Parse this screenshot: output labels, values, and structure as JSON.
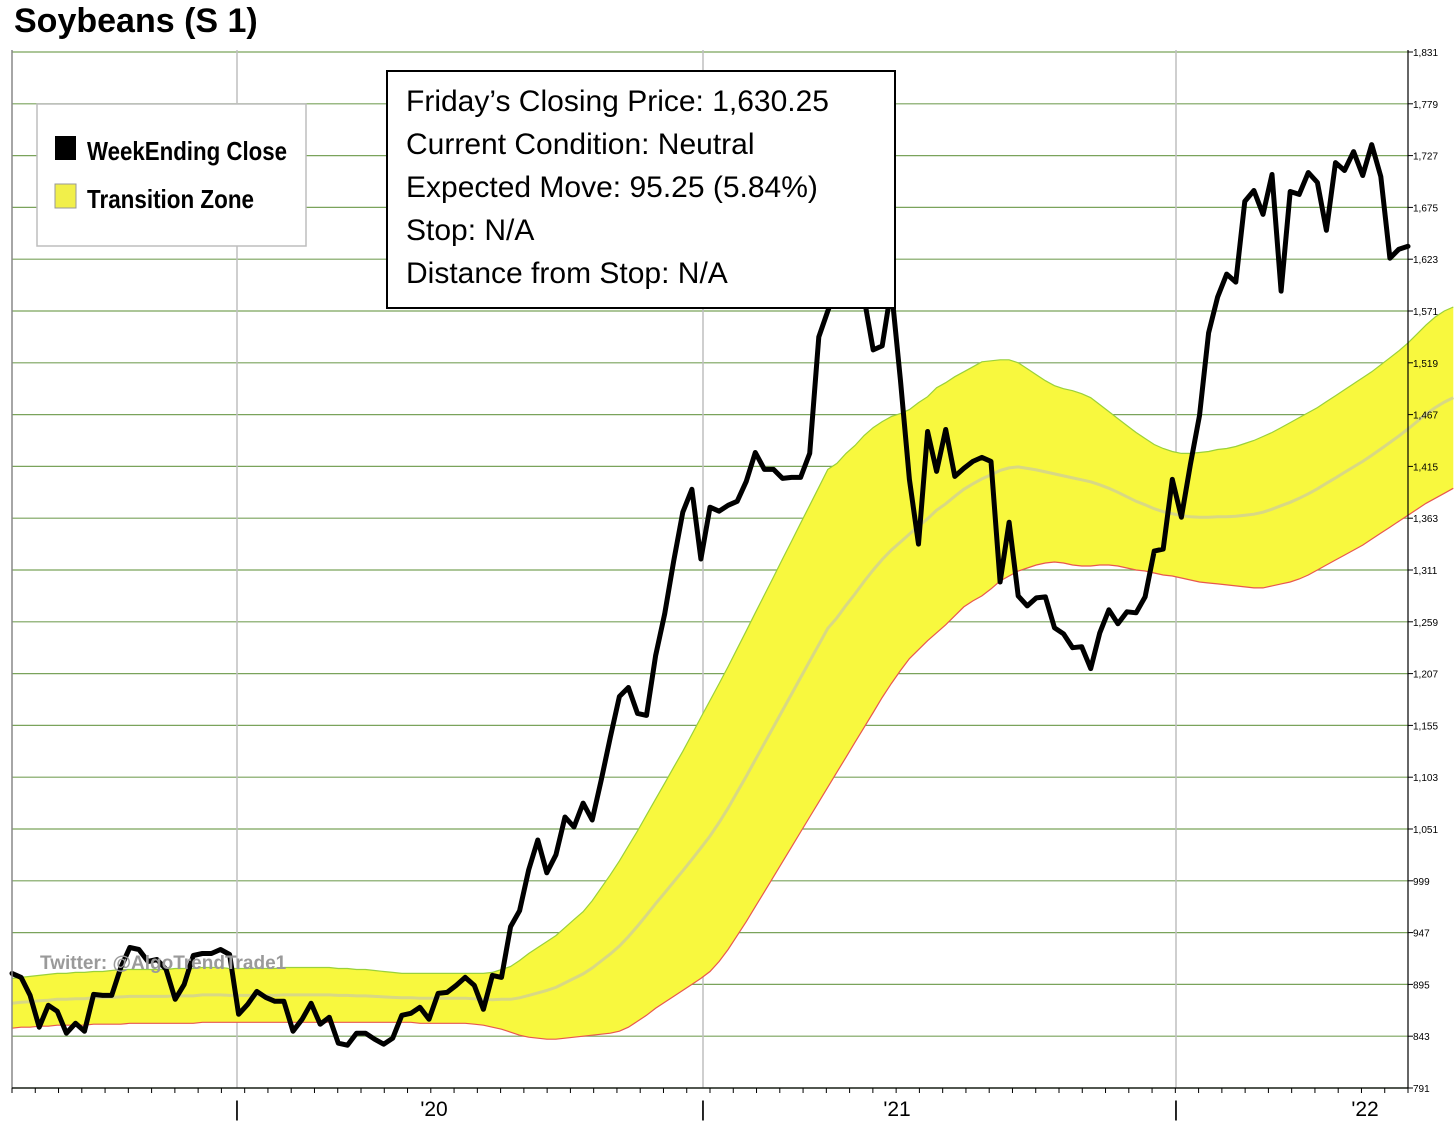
{
  "chart_data": {
    "type": "line",
    "title": "Soybeans (S 1)",
    "ylim": [
      791,
      1831
    ],
    "y_ticks": [
      "1,831",
      "1,779",
      "1,727",
      "1,675",
      "1,623",
      "1,571",
      "1,519",
      "1,467",
      "1,415",
      "1,363",
      "1,311",
      "1,259",
      "1,207",
      "1,155",
      "1,103",
      "1,051",
      "999",
      "947",
      "895",
      "843",
      "791"
    ],
    "x_ticks": [
      "|",
      "'20",
      "|",
      "'21",
      "|",
      "'22"
    ],
    "legend": {
      "placement": "top-left",
      "items": [
        "WeekEnding Close",
        "Transition Zone"
      ]
    },
    "info_box": [
      "Friday’s Closing Price: 1,630.25",
      "Current Condition: Neutral",
      "Expected Move: 95.25 (5.84%)",
      "Stop: N/A",
      "Distance from Stop: N/A"
    ],
    "watermark": "Twitter: @AlgoTrendTrade1",
    "colors": {
      "close": "#000000",
      "zone": "#f8f83e",
      "zone_upper_edge": "#9ad13a",
      "zone_lower_edge": "#e8574f",
      "zone_mid": "#d8d884",
      "grid": "#7aa35b",
      "vgrid": "#bfbfbf"
    },
    "series": [
      {
        "name": "WeekEnding Close",
        "values": [
          906,
          902,
          884,
          852,
          874,
          868,
          846,
          856,
          848,
          885,
          884,
          884,
          912,
          932,
          930,
          918,
          920,
          910,
          880,
          895,
          924,
          926,
          926,
          930,
          925,
          865,
          875,
          888,
          882,
          878,
          878,
          848,
          860,
          876,
          855,
          862,
          836,
          834,
          846,
          846,
          840,
          835,
          841,
          864,
          866,
          872,
          860,
          886,
          887,
          894,
          902,
          894,
          870,
          904,
          902,
          953,
          969,
          1010,
          1040,
          1007,
          1025,
          1063,
          1053,
          1077,
          1060,
          1100,
          1143,
          1184,
          1193,
          1167,
          1165,
          1225,
          1267,
          1320,
          1369,
          1392,
          1322,
          1374,
          1370,
          1376,
          1380,
          1400,
          1429,
          1412,
          1412,
          1403,
          1404,
          1404,
          1428,
          1545,
          1571,
          1594,
          1645,
          1638,
          1584,
          1532,
          1536,
          1594,
          1502,
          1402,
          1337,
          1450,
          1410,
          1452,
          1405,
          1413,
          1420,
          1424,
          1420,
          1299,
          1359,
          1285,
          1275,
          1283,
          1284,
          1253,
          1247,
          1233,
          1234,
          1212,
          1248,
          1271,
          1257,
          1269,
          1268,
          1284,
          1330,
          1332,
          1402,
          1364,
          1417,
          1466,
          1549,
          1585,
          1608,
          1600,
          1681,
          1692,
          1668,
          1708,
          1591,
          1691,
          1688,
          1710,
          1700,
          1652,
          1720,
          1712,
          1731,
          1707,
          1738,
          1706,
          1624,
          1633,
          1636
        ]
      },
      {
        "name": "Transition Zone",
        "upper": [
          901,
          902,
          903,
          904,
          905,
          906,
          906,
          907,
          907,
          908,
          908,
          909,
          910,
          910,
          910,
          910,
          910,
          910,
          911,
          911,
          911,
          912,
          912,
          912,
          911,
          911,
          911,
          911,
          911,
          911,
          912,
          912,
          912,
          912,
          912,
          912,
          911,
          911,
          910,
          910,
          909,
          908,
          907,
          906,
          906,
          906,
          906,
          906,
          906,
          906,
          906,
          906,
          906,
          907,
          910,
          913,
          919,
          926,
          932,
          938,
          944,
          952,
          960,
          968,
          979,
          992,
          1005,
          1019,
          1034,
          1049,
          1065,
          1081,
          1097,
          1113,
          1129,
          1146,
          1163,
          1180,
          1197,
          1214,
          1232,
          1250,
          1268,
          1286,
          1304,
          1322,
          1340,
          1358,
          1376,
          1394,
          1412,
          1418,
          1428,
          1436,
          1446,
          1454,
          1460,
          1465,
          1468,
          1472,
          1479,
          1485,
          1494,
          1499,
          1505,
          1510,
          1515,
          1520,
          1521,
          1522,
          1522,
          1519,
          1513,
          1507,
          1501,
          1496,
          1493,
          1491,
          1488,
          1484,
          1477,
          1470,
          1463,
          1456,
          1449,
          1443,
          1437,
          1433,
          1430,
          1428,
          1428,
          1429,
          1430,
          1432,
          1433,
          1435,
          1438,
          1441,
          1445,
          1449,
          1454,
          1459,
          1464,
          1469,
          1474,
          1480,
          1486,
          1492,
          1498,
          1504,
          1510,
          1517,
          1524,
          1531,
          1539,
          1548,
          1557,
          1565,
          1571,
          1575
        ],
        "lower": [
          851,
          852,
          852,
          853,
          853,
          854,
          854,
          854,
          854,
          855,
          855,
          855,
          855,
          856,
          856,
          856,
          856,
          856,
          856,
          856,
          856,
          857,
          857,
          857,
          857,
          857,
          857,
          857,
          857,
          857,
          857,
          857,
          857,
          857,
          857,
          857,
          857,
          857,
          857,
          857,
          857,
          857,
          857,
          857,
          857,
          856,
          856,
          856,
          856,
          856,
          856,
          855,
          854,
          852,
          850,
          847,
          844,
          842,
          841,
          840,
          840,
          841,
          842,
          843,
          844,
          845,
          846,
          848,
          852,
          858,
          864,
          871,
          877,
          883,
          889,
          895,
          901,
          908,
          918,
          930,
          944,
          958,
          973,
          988,
          1003,
          1018,
          1033,
          1048,
          1063,
          1078,
          1093,
          1108,
          1123,
          1138,
          1153,
          1168,
          1183,
          1197,
          1210,
          1222,
          1231,
          1240,
          1248,
          1256,
          1265,
          1274,
          1280,
          1285,
          1292,
          1300,
          1305,
          1310,
          1313,
          1316,
          1318,
          1319,
          1318,
          1316,
          1315,
          1315,
          1316,
          1316,
          1315,
          1313,
          1311,
          1310,
          1308,
          1306,
          1305,
          1303,
          1301,
          1299,
          1298,
          1297,
          1296,
          1295,
          1294,
          1293,
          1293,
          1295,
          1297,
          1299,
          1302,
          1306,
          1311,
          1316,
          1321,
          1326,
          1331,
          1336,
          1342,
          1348,
          1354,
          1360,
          1366,
          1372,
          1378,
          1383,
          1388,
          1393
        ]
      }
    ]
  }
}
